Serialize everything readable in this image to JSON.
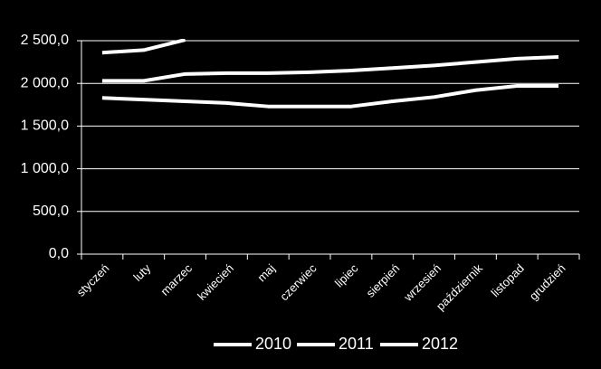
{
  "chart_data": {
    "type": "line",
    "categories": [
      "styczeń",
      "luty",
      "marzec",
      "kwiecień",
      "maj",
      "czerwiec",
      "lipiec",
      "sierpień",
      "wrzesień",
      "październik",
      "listopad",
      "grudzień"
    ],
    "series": [
      {
        "name": "2010",
        "color": "#ffffff",
        "values": [
          1830,
          1810,
          1790,
          1770,
          1730,
          1730,
          1730,
          1790,
          1840,
          1920,
          1970,
          1970
        ]
      },
      {
        "name": "2011",
        "color": "#ffffff",
        "values": [
          2030,
          2030,
          2110,
          2120,
          2120,
          2130,
          2150,
          2180,
          2210,
          2250,
          2290,
          2310
        ]
      },
      {
        "name": "2012",
        "color": "#ffffff",
        "values": [
          2360,
          2390,
          2510,
          null,
          null,
          null,
          null,
          null,
          null,
          null,
          null,
          null
        ]
      }
    ],
    "ylim": [
      0,
      2500
    ],
    "yticks": [
      {
        "value": 0,
        "label": "0,0"
      },
      {
        "value": 500,
        "label": "500,0"
      },
      {
        "value": 1000,
        "label": "1 000,0"
      },
      {
        "value": 1500,
        "label": "1 500,0"
      },
      {
        "value": 2000,
        "label": "2 000,0"
      },
      {
        "value": 2500,
        "label": "2 500,0"
      }
    ],
    "grid": true,
    "legend": "bottom"
  }
}
